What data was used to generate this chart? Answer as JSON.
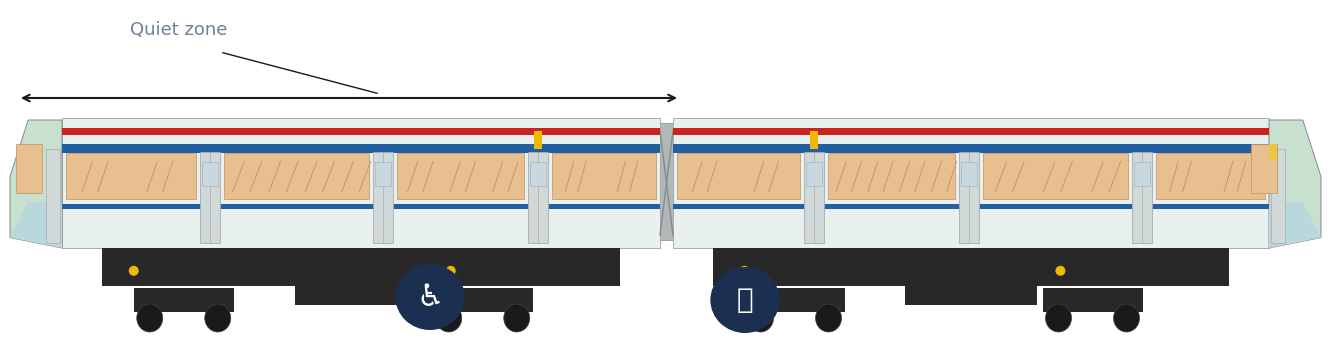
{
  "bg_color": "#ffffff",
  "quiet_zone_text": "Quiet zone",
  "quiet_zone_color": "#6b8299",
  "arrow_color": "#1a1a1a",
  "body_white": "#e8f0f0",
  "body_teal": "#b8d8dc",
  "stripe_red": "#cc2222",
  "stripe_blue": "#2060a0",
  "stripe_yellow": "#f0b800",
  "window_fill": "#e8c090",
  "window_fill2": "#d4a870",
  "door_light": "#d0d8d8",
  "door_dark": "#b0b8b8",
  "under_dark": "#282828",
  "under_mid": "#383838",
  "wheel_dark": "#181818",
  "bogie_dark": "#1a1a1a",
  "icon_bg": "#1b3050",
  "icon_fg": "#ffffff",
  "nose_green": "#c8e0d0",
  "nose_yellow": "#e8c840"
}
